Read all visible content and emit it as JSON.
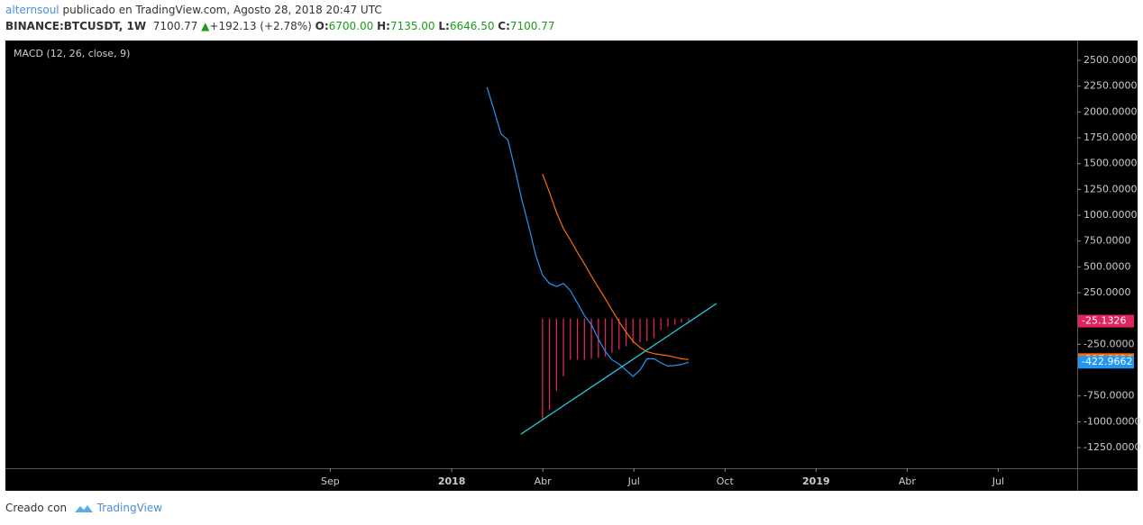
{
  "header": {
    "author": "alternsoul",
    "published": "publicado en TradingView.com, Agosto 28, 2018 20:47 UTC",
    "symbol": "BINANCE:BTCUSDT, 1W",
    "last": "7100.77",
    "arrow": "▲",
    "change": "+192.13 (+2.78%)",
    "o_label": "O:",
    "o": "6700.00",
    "h_label": "H:",
    "h": "7135.00",
    "l_label": "L:",
    "l": "6646.50",
    "c_label": "C:",
    "c": "7100.77"
  },
  "footer": {
    "created": "Creado con",
    "brand": "TradingView"
  },
  "chart_data": {
    "type": "line",
    "title": "MACD (12, 26, close, 9)",
    "x": [
      1.16,
      1.39,
      1.62,
      1.85,
      2.08,
      2.31,
      2.53,
      2.76,
      2.99,
      3.22,
      3.45,
      3.68,
      3.91,
      4.14,
      4.37,
      4.6,
      4.83,
      5.06,
      5.28,
      5.51,
      5.74,
      5.97,
      6.2,
      6.43,
      6.66,
      6.89,
      7.12,
      7.35,
      7.57,
      7.8
    ],
    "series": [
      {
        "type": "histogram",
        "color": "#e0245e",
        "values": [
          null,
          null,
          null,
          null,
          null,
          null,
          null,
          null,
          -980,
          -880,
          -700,
          -560,
          -400,
          -400,
          -400,
          -390,
          -380,
          -370,
          -330,
          -300,
          -270,
          -240,
          -230,
          -220,
          -190,
          -110,
          -80,
          -60,
          -40,
          -25.1326
        ]
      },
      {
        "type": "line",
        "color": "#ff6d00",
        "values": [
          null,
          null,
          null,
          null,
          null,
          null,
          null,
          null,
          1400,
          1220,
          1030,
          870,
          760,
          640,
          530,
          410,
          300,
          190,
          80,
          -30,
          -130,
          -220,
          -280,
          -320,
          -340,
          -350,
          -360,
          -375,
          -390,
          -397.8336
        ]
      },
      {
        "type": "line",
        "color": "#2196f3",
        "values": [
          2240,
          2020,
          1790,
          1730,
          1450,
          1150,
          900,
          620,
          420,
          340,
          310,
          340,
          270,
          150,
          30,
          -60,
          -200,
          -320,
          -400,
          -440,
          -500,
          -560,
          -500,
          -390,
          -390,
          -430,
          -460,
          -455,
          -445,
          -422.9662
        ]
      }
    ],
    "trendline": {
      "x": [
        2.28,
        8.72
      ],
      "values": [
        -1119,
        145
      ],
      "color": "#26c6da"
    },
    "xlim": [
      -14.7,
      20.6
    ],
    "xticks": [
      {
        "value": -4,
        "label": "Sep"
      },
      {
        "value": 0,
        "label": "2018"
      },
      {
        "value": 3,
        "label": "Abr"
      },
      {
        "value": 6,
        "label": "Jul"
      },
      {
        "value": 9,
        "label": "Oct"
      },
      {
        "value": 12,
        "label": "2019"
      },
      {
        "value": 15,
        "label": "Abr"
      },
      {
        "value": 18,
        "label": "Jul"
      }
    ],
    "ylim": [
      -1450,
      2692
    ],
    "yticks": [
      {
        "value": 2500,
        "label": "2500.0000"
      },
      {
        "value": 2250,
        "label": "2250.0000"
      },
      {
        "value": 2000,
        "label": "2000.0000"
      },
      {
        "value": 1750,
        "label": "1750.0000"
      },
      {
        "value": 1500,
        "label": "1500.0000"
      },
      {
        "value": 1250,
        "label": "1250.0000"
      },
      {
        "value": 1000,
        "label": "1000.0000"
      },
      {
        "value": 750,
        "label": "750.0000"
      },
      {
        "value": 500,
        "label": "500.0000"
      },
      {
        "value": 250,
        "label": "250.0000"
      },
      {
        "value": -250,
        "label": "-250.0000"
      },
      {
        "value": -750,
        "label": "-750.0000"
      },
      {
        "value": -1000,
        "label": "-1000.0000"
      },
      {
        "value": -1250,
        "label": "-1250.0000"
      }
    ]
  }
}
